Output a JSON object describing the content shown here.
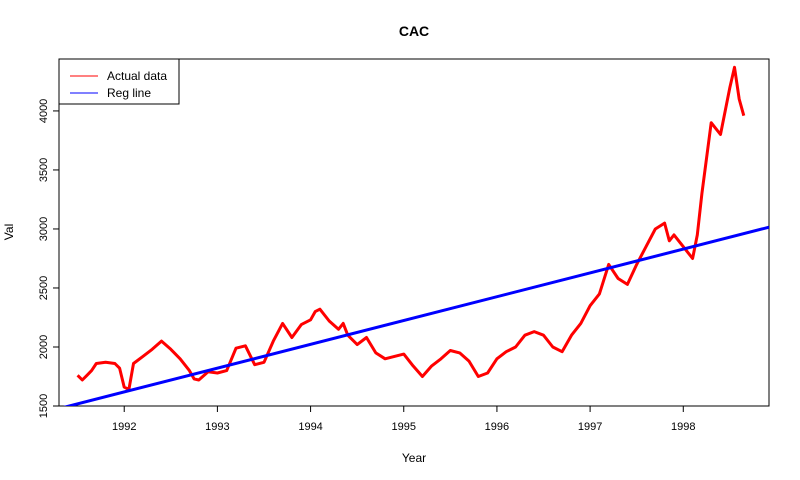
{
  "chart_data": {
    "type": "line",
    "title": "CAC",
    "xlabel": "Year",
    "ylabel": "Val",
    "xlim": [
      1991.3,
      1998.92
    ],
    "ylim": [
      1500,
      4440
    ],
    "x_ticks": [
      1992,
      1993,
      1994,
      1995,
      1996,
      1997,
      1998
    ],
    "x_tick_labels": [
      "1992",
      "1993",
      "1994",
      "1995",
      "1996",
      "1997",
      "1998"
    ],
    "y_ticks": [
      1500,
      2000,
      2500,
      3000,
      3500,
      4000
    ],
    "y_tick_labels": [
      "1500",
      "2000",
      "2500",
      "3000",
      "3500",
      "4000"
    ],
    "grid": false,
    "legend_position": "top-left",
    "series": [
      {
        "name": "Actual data",
        "color": "#ff0000",
        "x": [
          1991.5,
          1991.55,
          1991.6,
          1991.65,
          1991.7,
          1991.8,
          1991.9,
          1991.95,
          1992.0,
          1992.05,
          1992.1,
          1992.2,
          1992.3,
          1992.4,
          1992.5,
          1992.6,
          1992.7,
          1992.75,
          1992.8,
          1992.9,
          1993.0,
          1993.1,
          1993.2,
          1993.3,
          1993.4,
          1993.5,
          1993.6,
          1993.7,
          1993.8,
          1993.9,
          1994.0,
          1994.05,
          1994.1,
          1994.2,
          1994.3,
          1994.35,
          1994.4,
          1994.5,
          1994.6,
          1994.7,
          1994.8,
          1994.9,
          1995.0,
          1995.1,
          1995.2,
          1995.3,
          1995.4,
          1995.5,
          1995.6,
          1995.7,
          1995.8,
          1995.9,
          1996.0,
          1996.1,
          1996.2,
          1996.3,
          1996.4,
          1996.5,
          1996.6,
          1996.7,
          1996.8,
          1996.9,
          1997.0,
          1997.1,
          1997.2,
          1997.3,
          1997.4,
          1997.5,
          1997.6,
          1997.7,
          1997.8,
          1997.85,
          1997.9,
          1998.0,
          1998.1,
          1998.15,
          1998.2,
          1998.3,
          1998.4,
          1998.5,
          1998.55,
          1998.6,
          1998.65
        ],
        "y": [
          1760,
          1720,
          1760,
          1800,
          1860,
          1870,
          1860,
          1820,
          1660,
          1640,
          1860,
          1920,
          1980,
          2050,
          1980,
          1900,
          1800,
          1730,
          1720,
          1790,
          1780,
          1800,
          1990,
          2010,
          1850,
          1870,
          2050,
          2200,
          2080,
          2190,
          2230,
          2300,
          2320,
          2220,
          2150,
          2200,
          2100,
          2020,
          2080,
          1950,
          1900,
          1920,
          1940,
          1840,
          1750,
          1840,
          1900,
          1970,
          1950,
          1880,
          1750,
          1780,
          1900,
          1960,
          2000,
          2100,
          2130,
          2100,
          2000,
          1960,
          2100,
          2200,
          2350,
          2450,
          2700,
          2580,
          2530,
          2700,
          2850,
          3000,
          3050,
          2900,
          2950,
          2850,
          2750,
          2950,
          3300,
          3900,
          3800,
          4200,
          4370,
          4100,
          3960
        ]
      },
      {
        "name": "Reg line",
        "color": "#0000ff",
        "x": [
          1991.3,
          1998.92
        ],
        "y": [
          1478,
          3015
        ]
      }
    ]
  }
}
